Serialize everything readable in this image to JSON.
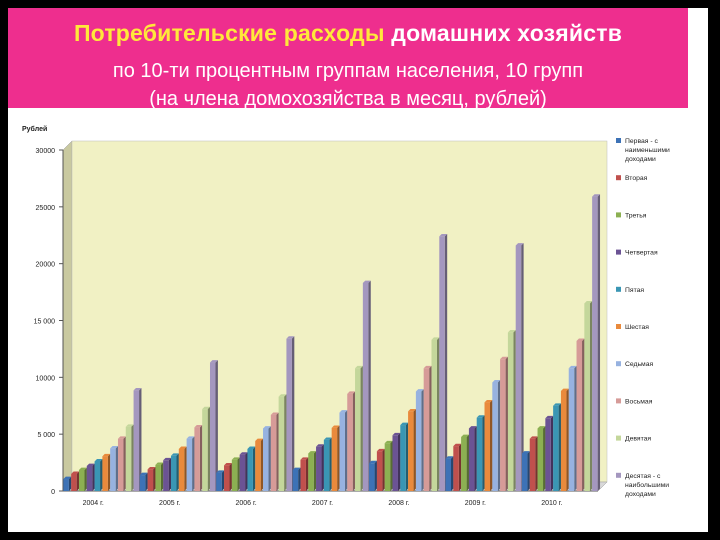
{
  "header": {
    "title_highlight": "Потребительские расходы",
    "title_rest": "домашних хозяйств",
    "subtitle_line1": "по 10-ти  процентным группам населения, 10 групп",
    "subtitle_line2": "(на члена домохозяйства в месяц, рублей)",
    "background": "#ee2e8e",
    "highlight_color": "#ffe83a"
  },
  "chart_data": {
    "type": "bar",
    "title": "",
    "ylabel": "Рублей",
    "xlabel": "",
    "ylim": [
      0,
      30000
    ],
    "yticks": [
      "0",
      "5 000",
      "10000",
      "15 000",
      "20000",
      "25000",
      "30000"
    ],
    "categories": [
      "2004 г.",
      "2005 г.",
      "2006 г.",
      "2007 г.",
      "2008 г.",
      "2009 г.",
      "2010 г."
    ],
    "grid": false,
    "legend_position": "right",
    "plot_background": "#f1f1c4",
    "series": [
      {
        "name": "Первая - с наименьшими доходами",
        "color": "#3d72b6",
        "values": [
          1050,
          1400,
          1600,
          1850,
          2450,
          2850,
          3300
        ]
      },
      {
        "name": "Вторая",
        "color": "#c0504d",
        "values": [
          1500,
          1900,
          2250,
          2750,
          3500,
          3950,
          4600
        ]
      },
      {
        "name": "Третья",
        "color": "#8cb052",
        "values": [
          1850,
          2300,
          2750,
          3300,
          4200,
          4750,
          5500
        ]
      },
      {
        "name": "Четвертая",
        "color": "#6b5394",
        "values": [
          2200,
          2700,
          3200,
          3900,
          4900,
          5500,
          6400
        ]
      },
      {
        "name": "Пятая",
        "color": "#3a96b4",
        "values": [
          2600,
          3100,
          3700,
          4500,
          5800,
          6450,
          7500
        ]
      },
      {
        "name": "Шестая",
        "color": "#e98a3c",
        "values": [
          3050,
          3700,
          4400,
          5550,
          7000,
          7800,
          8800
        ]
      },
      {
        "name": "Седьмая",
        "color": "#97b2e0",
        "values": [
          3750,
          4600,
          5500,
          6900,
          8750,
          9550,
          10800
        ]
      },
      {
        "name": "Восьмая",
        "color": "#d69b98",
        "values": [
          4600,
          5600,
          6700,
          8550,
          10800,
          11600,
          13200
        ]
      },
      {
        "name": "Девятая",
        "color": "#c4d79b",
        "values": [
          5650,
          7200,
          8300,
          10800,
          13300,
          13950,
          16500
        ]
      },
      {
        "name": "Десятая - с наибольшими доходами",
        "color": "#a497bf",
        "values": [
          8850,
          11300,
          13400,
          18300,
          22400,
          21600,
          25900
        ]
      }
    ]
  }
}
